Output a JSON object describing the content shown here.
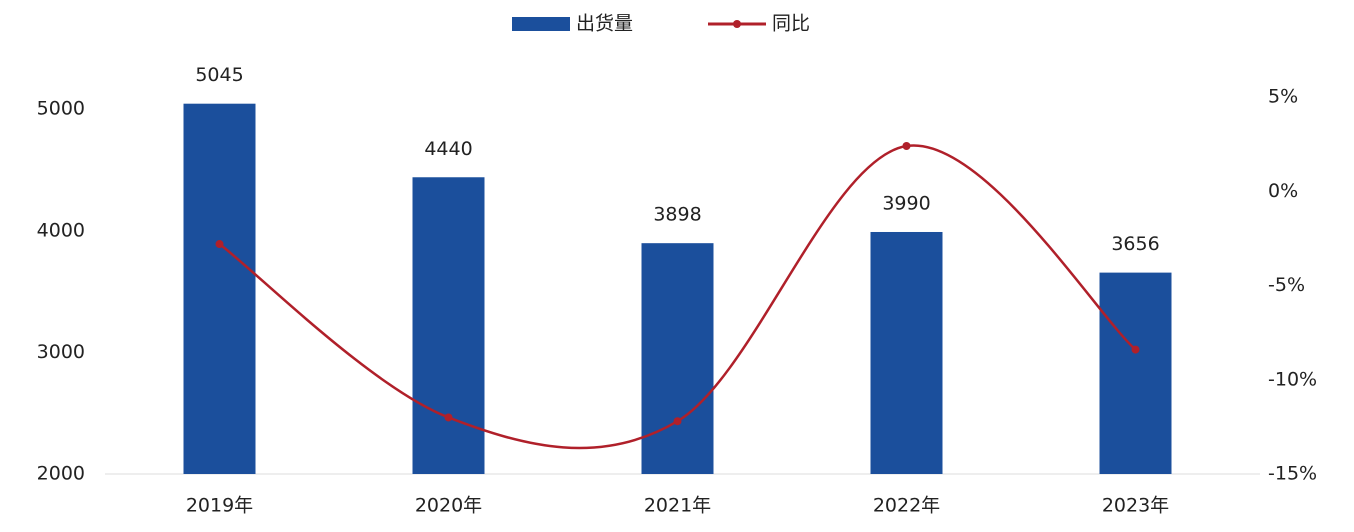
{
  "chart_data": {
    "type": "bar",
    "categories": [
      "2019年",
      "2020年",
      "2021年",
      "2022年",
      "2023年"
    ],
    "series": [
      {
        "name": "出货量",
        "color": "#1b4f9c",
        "values": [
          5045,
          4440,
          3898,
          3990,
          3656
        ]
      },
      {
        "name": "同比",
        "color": "#b0202a",
        "type": "line",
        "axis": "y2",
        "values": [
          -2.8,
          -12.0,
          -12.2,
          2.4,
          -8.4
        ]
      }
    ],
    "ylim": [
      2000,
      5100
    ],
    "yticks": [
      2000,
      3000,
      4000,
      5000
    ],
    "y2lim": [
      -15,
      5
    ],
    "y2ticks": [
      {
        "value": -15,
        "label": "-15%"
      },
      {
        "value": -10,
        "label": "-10%"
      },
      {
        "value": -5,
        "label": "-5%"
      },
      {
        "value": 0,
        "label": "0%"
      },
      {
        "value": 5,
        "label": "5%"
      }
    ],
    "legend": "top"
  }
}
